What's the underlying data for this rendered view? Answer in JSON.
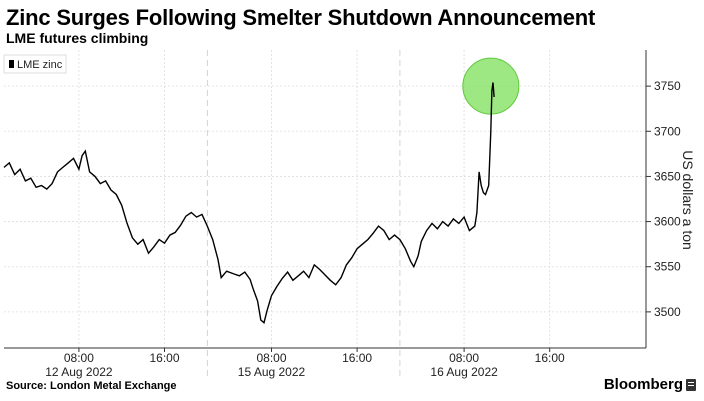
{
  "header": {
    "title": "Zinc Surges Following Smelter Shutdown Announcement",
    "subtitle": "LME futures climbing"
  },
  "footer": {
    "source": "Source: London Metal Exchange",
    "brand": "Bloomberg"
  },
  "colors": {
    "line": "#000000",
    "grid": "#dddddd",
    "highlight": "#7ee05a"
  },
  "chart_data": {
    "type": "line",
    "ylabel": "US dollars a ton",
    "ylim": [
      3460,
      3790
    ],
    "yticks": [
      3500,
      3550,
      3600,
      3650,
      3700,
      3750
    ],
    "xlim": [
      0,
      60
    ],
    "xticks": [
      {
        "x": 7,
        "label": "08:00",
        "sub": "12 Aug 2022"
      },
      {
        "x": 15,
        "label": "16:00",
        "sub": ""
      },
      {
        "x": 25,
        "label": "08:00",
        "sub": "15 Aug 2022"
      },
      {
        "x": 33,
        "label": "16:00",
        "sub": ""
      },
      {
        "x": 43,
        "label": "08:00",
        "sub": "16 Aug 2022"
      },
      {
        "x": 51,
        "label": "16:00",
        "sub": ""
      }
    ],
    "day_breaks": [
      19,
      37
    ],
    "legend": [
      "LME zinc"
    ],
    "highlight_point": {
      "x": 45.5,
      "y": 3750
    },
    "series": [
      {
        "name": "LME zinc",
        "points": [
          [
            0,
            3660
          ],
          [
            0.5,
            3665
          ],
          [
            1.0,
            3652
          ],
          [
            1.5,
            3658
          ],
          [
            2.0,
            3645
          ],
          [
            2.5,
            3648
          ],
          [
            3.0,
            3638
          ],
          [
            3.5,
            3640
          ],
          [
            4.0,
            3636
          ],
          [
            4.5,
            3642
          ],
          [
            5.0,
            3655
          ],
          [
            5.5,
            3660
          ],
          [
            6.0,
            3665
          ],
          [
            6.5,
            3670
          ],
          [
            7.0,
            3658
          ],
          [
            7.3,
            3673
          ],
          [
            7.6,
            3678
          ],
          [
            8.0,
            3655
          ],
          [
            8.5,
            3650
          ],
          [
            9.0,
            3642
          ],
          [
            9.5,
            3645
          ],
          [
            10.0,
            3635
          ],
          [
            10.5,
            3630
          ],
          [
            11.0,
            3618
          ],
          [
            11.5,
            3598
          ],
          [
            12.0,
            3582
          ],
          [
            12.5,
            3575
          ],
          [
            13.0,
            3580
          ],
          [
            13.5,
            3565
          ],
          [
            14.0,
            3572
          ],
          [
            14.5,
            3580
          ],
          [
            15.0,
            3576
          ],
          [
            15.5,
            3585
          ],
          [
            16.0,
            3588
          ],
          [
            16.5,
            3596
          ],
          [
            17.0,
            3606
          ],
          [
            17.5,
            3610
          ],
          [
            18.0,
            3605
          ],
          [
            18.5,
            3608
          ],
          [
            19.0,
            3595
          ],
          [
            19.5,
            3580
          ],
          [
            20.0,
            3558
          ],
          [
            20.3,
            3538
          ],
          [
            20.8,
            3545
          ],
          [
            21.5,
            3542
          ],
          [
            22.0,
            3540
          ],
          [
            22.5,
            3544
          ],
          [
            23.0,
            3536
          ],
          [
            23.3,
            3525
          ],
          [
            23.7,
            3512
          ],
          [
            24.0,
            3491
          ],
          [
            24.3,
            3488
          ],
          [
            24.6,
            3502
          ],
          [
            25.0,
            3518
          ],
          [
            25.5,
            3528
          ],
          [
            26.0,
            3537
          ],
          [
            26.5,
            3544
          ],
          [
            27.0,
            3535
          ],
          [
            27.5,
            3540
          ],
          [
            28.0,
            3545
          ],
          [
            28.5,
            3538
          ],
          [
            29.0,
            3552
          ],
          [
            29.5,
            3547
          ],
          [
            30.0,
            3541
          ],
          [
            30.5,
            3535
          ],
          [
            31.0,
            3530
          ],
          [
            31.5,
            3538
          ],
          [
            32.0,
            3552
          ],
          [
            32.5,
            3560
          ],
          [
            33.0,
            3570
          ],
          [
            33.5,
            3575
          ],
          [
            34.0,
            3580
          ],
          [
            34.5,
            3587
          ],
          [
            35.0,
            3595
          ],
          [
            35.5,
            3590
          ],
          [
            36.0,
            3580
          ],
          [
            36.5,
            3585
          ],
          [
            37.0,
            3580
          ],
          [
            37.5,
            3570
          ],
          [
            38.0,
            3556
          ],
          [
            38.3,
            3550
          ],
          [
            38.7,
            3562
          ],
          [
            39.0,
            3578
          ],
          [
            39.5,
            3590
          ],
          [
            40.0,
            3598
          ],
          [
            40.5,
            3592
          ],
          [
            41.0,
            3600
          ],
          [
            41.5,
            3595
          ],
          [
            42.0,
            3603
          ],
          [
            42.5,
            3598
          ],
          [
            43.0,
            3605
          ],
          [
            43.5,
            3590
          ],
          [
            44.0,
            3595
          ],
          [
            44.2,
            3610
          ],
          [
            44.4,
            3655
          ],
          [
            44.6,
            3640
          ],
          [
            44.8,
            3632
          ],
          [
            45.0,
            3630
          ],
          [
            45.3,
            3640
          ],
          [
            45.5,
            3700
          ],
          [
            45.6,
            3745
          ],
          [
            45.7,
            3754
          ],
          [
            45.8,
            3738
          ]
        ]
      }
    ]
  }
}
